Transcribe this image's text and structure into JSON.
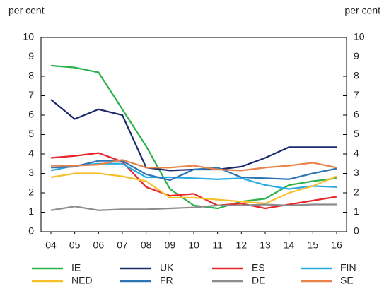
{
  "chart_data": {
    "type": "line",
    "y_label": "per cent",
    "y2_label": "per cent",
    "categories": [
      "04",
      "05",
      "06",
      "07",
      "08",
      "09",
      "10",
      "11",
      "12",
      "13",
      "14",
      "15",
      "16"
    ],
    "ylim": [
      0,
      10
    ],
    "yticks": [
      0,
      1,
      2,
      3,
      4,
      5,
      6,
      7,
      8,
      9,
      10
    ],
    "y2lim": [
      0,
      10
    ],
    "y2ticks": [
      0,
      1,
      2,
      3,
      4,
      5,
      6,
      7,
      8,
      9,
      10
    ],
    "series": [
      {
        "name": "IE",
        "color": "#2bb24c",
        "values": [
          8.55,
          8.45,
          8.2,
          6.3,
          4.4,
          2.2,
          1.35,
          1.2,
          1.55,
          1.7,
          2.4,
          2.6,
          2.75
        ]
      },
      {
        "name": "UK",
        "color": "#1c2a6b",
        "values": [
          6.8,
          5.8,
          6.3,
          6.0,
          3.3,
          3.15,
          3.2,
          3.2,
          3.35,
          3.8,
          4.35,
          4.35,
          4.35
        ]
      },
      {
        "name": "ES",
        "color": "#e8262a",
        "values": [
          3.8,
          3.9,
          4.05,
          3.6,
          2.3,
          1.85,
          1.95,
          1.35,
          1.45,
          1.2,
          1.4,
          1.6,
          1.8
        ]
      },
      {
        "name": "FIN",
        "color": "#29abe2",
        "values": [
          3.15,
          3.4,
          3.5,
          3.5,
          2.8,
          2.8,
          2.75,
          2.7,
          2.75,
          2.4,
          2.2,
          2.35,
          2.3
        ]
      },
      {
        "name": "NED",
        "color": "#f6c02c",
        "values": [
          2.8,
          3.0,
          3.0,
          2.85,
          2.6,
          1.75,
          1.75,
          1.65,
          1.55,
          1.45,
          2.0,
          2.35,
          2.85
        ]
      },
      {
        "name": "FR",
        "color": "#2e75b6",
        "values": [
          3.3,
          3.35,
          3.65,
          3.65,
          2.95,
          2.65,
          3.2,
          3.3,
          2.8,
          2.75,
          2.7,
          3.0,
          3.25
        ]
      },
      {
        "name": "DE",
        "color": "#8c8c8c",
        "values": [
          1.1,
          1.3,
          1.1,
          1.15,
          1.15,
          1.2,
          1.25,
          1.35,
          1.35,
          1.4,
          1.35,
          1.4,
          1.4
        ]
      },
      {
        "name": "SE",
        "color": "#e8834a",
        "values": [
          3.4,
          3.4,
          3.45,
          3.7,
          3.3,
          3.3,
          3.4,
          3.2,
          3.15,
          3.3,
          3.4,
          3.55,
          3.3
        ]
      }
    ]
  }
}
